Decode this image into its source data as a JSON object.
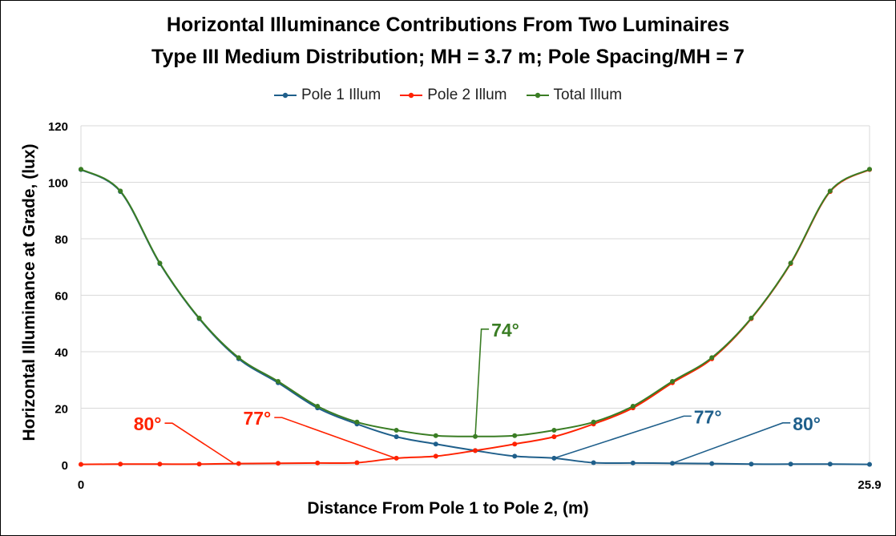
{
  "chart_data": {
    "type": "line",
    "title": "Horizontal Illuminance Contributions From Two Luminaires",
    "subtitle": "Type III Medium Distribution; MH = 3.7 m; Pole Spacing/MH = 7",
    "xlabel": "Distance From Pole 1 to Pole 2, (m)",
    "ylabel": "Horizontal Illuminance at Grade, (lux)",
    "xlim": [
      0,
      25.9
    ],
    "ylim": [
      0,
      120
    ],
    "x_tick_labels": [
      "0",
      "25.9"
    ],
    "y_ticks": [
      0,
      20,
      40,
      60,
      80,
      100,
      120
    ],
    "grid": true,
    "legend_position": "top",
    "x": [
      0,
      1.295,
      2.59,
      3.885,
      5.18,
      6.475,
      7.77,
      9.065,
      10.36,
      11.655,
      12.95,
      14.245,
      15.54,
      16.835,
      18.13,
      19.425,
      20.72,
      22.015,
      23.31,
      24.605,
      25.9
    ],
    "series": [
      {
        "name": "Pole 1 Illum",
        "color": "#1f5f8b",
        "values": [
          104.5,
          96.7,
          71.2,
          51.7,
          37.5,
          29.0,
          20.1,
          14.4,
          9.9,
          7.3,
          5.0,
          3.0,
          2.3,
          0.7,
          0.6,
          0.5,
          0.4,
          0.2,
          0.2,
          0.2,
          0.1
        ]
      },
      {
        "name": "Pole 2 Illum",
        "color": "#ff2200",
        "values": [
          0.1,
          0.2,
          0.2,
          0.2,
          0.4,
          0.5,
          0.6,
          0.7,
          2.3,
          3.0,
          5.0,
          7.3,
          9.9,
          14.4,
          20.1,
          29.0,
          37.5,
          51.7,
          71.2,
          96.7,
          104.5
        ]
      },
      {
        "name": "Total Illum",
        "color": "#3a7d24",
        "values": [
          104.6,
          96.9,
          71.4,
          51.9,
          37.9,
          29.5,
          20.7,
          15.1,
          12.2,
          10.3,
          10.0,
          10.3,
          12.2,
          15.1,
          20.7,
          29.5,
          37.9,
          51.9,
          71.4,
          96.9,
          104.6
        ]
      }
    ],
    "annotations": [
      {
        "text": "80°",
        "color": "#ff2200"
      },
      {
        "text": "77°",
        "color": "#ff2200"
      },
      {
        "text": "74°",
        "color": "#3a7d24"
      },
      {
        "text": "77°",
        "color": "#1f5f8b"
      },
      {
        "text": "80°",
        "color": "#1f5f8b"
      }
    ]
  }
}
